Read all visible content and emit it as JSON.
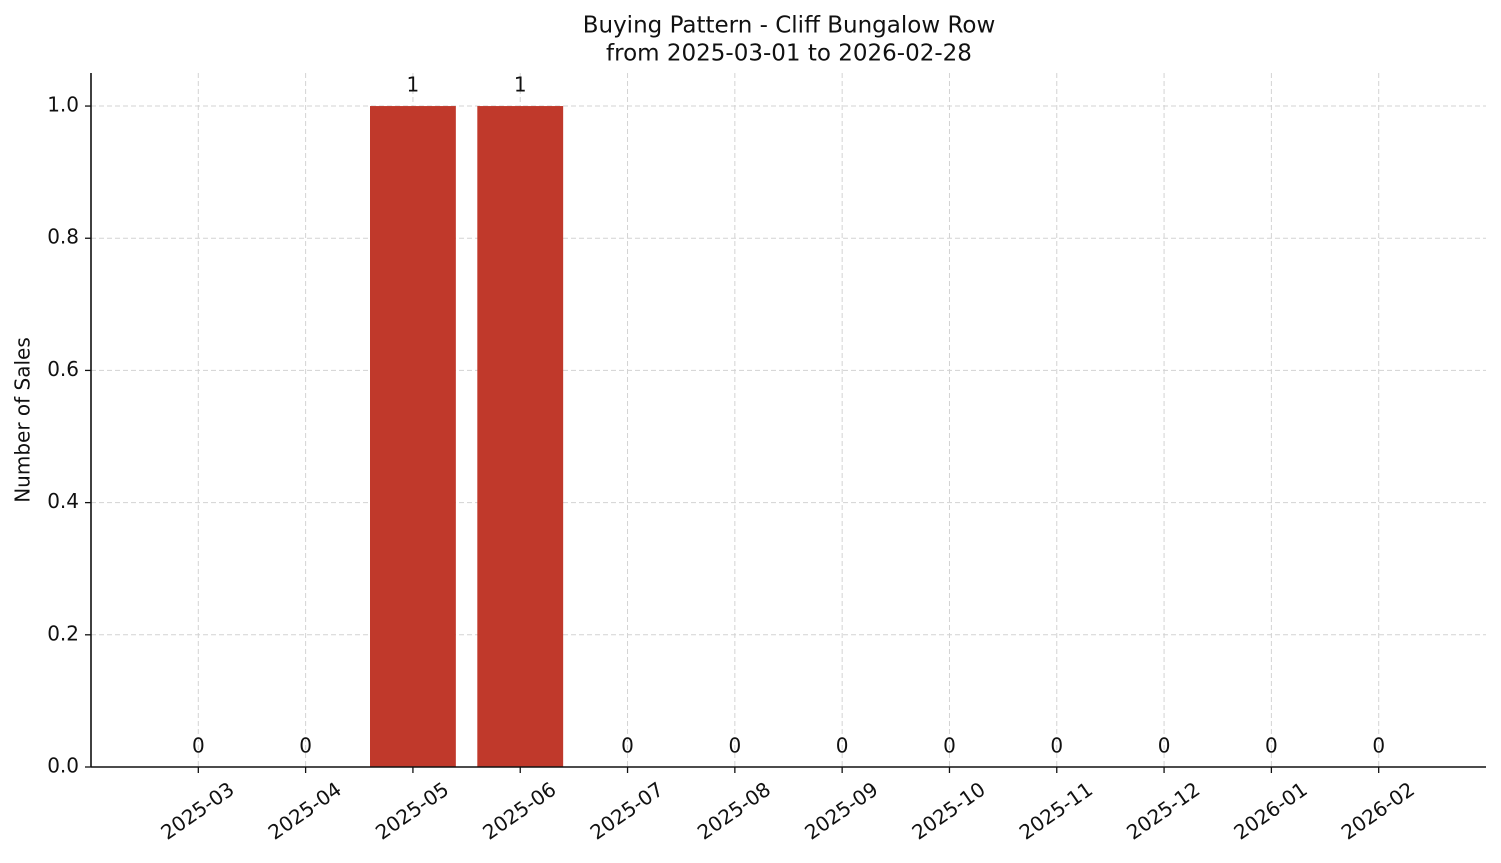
{
  "chart_data": {
    "type": "bar",
    "title": "Buying Pattern - Cliff Bungalow Row",
    "subtitle": "from 2025-03-01 to 2026-02-28",
    "y_label": "Number of Sales",
    "categories": [
      "2025-03",
      "2025-04",
      "2025-05",
      "2025-06",
      "2025-07",
      "2025-08",
      "2025-09",
      "2025-10",
      "2025-11",
      "2025-12",
      "2026-01",
      "2026-02"
    ],
    "values": [
      0,
      0,
      1,
      1,
      0,
      0,
      0,
      0,
      0,
      0,
      0,
      0
    ],
    "color": "#c0392b",
    "ylim": [
      0,
      1.05
    ],
    "yticks": [
      {
        "value": 0,
        "label": "0.0"
      },
      0.2,
      0.4,
      0.6,
      0.8,
      {
        "value": 1,
        "label": "1.0"
      }
    ],
    "grid": true
  }
}
